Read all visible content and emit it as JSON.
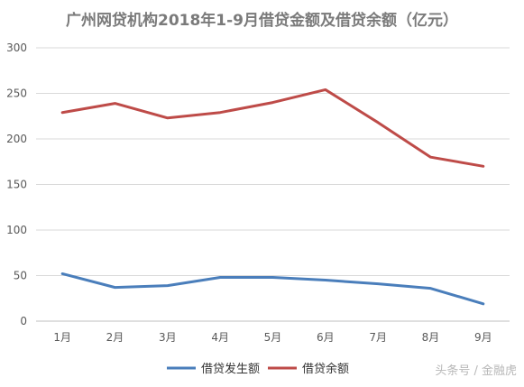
{
  "chart_data": {
    "type": "line",
    "title": "广州网贷机构2018年1-9月借贷金额及借贷余额（亿元）",
    "categories": [
      "1月",
      "2月",
      "3月",
      "4月",
      "5月",
      "6月",
      "7月",
      "8月",
      "9月"
    ],
    "series": [
      {
        "name": "借贷发生额",
        "color": "#4a7ebb",
        "values": [
          52,
          37,
          39,
          48,
          48,
          45,
          41,
          36,
          19
        ]
      },
      {
        "name": "借贷余额",
        "color": "#be4b48",
        "values": [
          229,
          239,
          223,
          229,
          240,
          254,
          218,
          180,
          170
        ]
      }
    ],
    "ylim": [
      0,
      300
    ],
    "yticks": [
      "0",
      "50",
      "100",
      "150",
      "200",
      "250",
      "300"
    ],
    "grid": true,
    "legend_position": "bottom"
  },
  "watermark": "头条号 / 金融虎"
}
